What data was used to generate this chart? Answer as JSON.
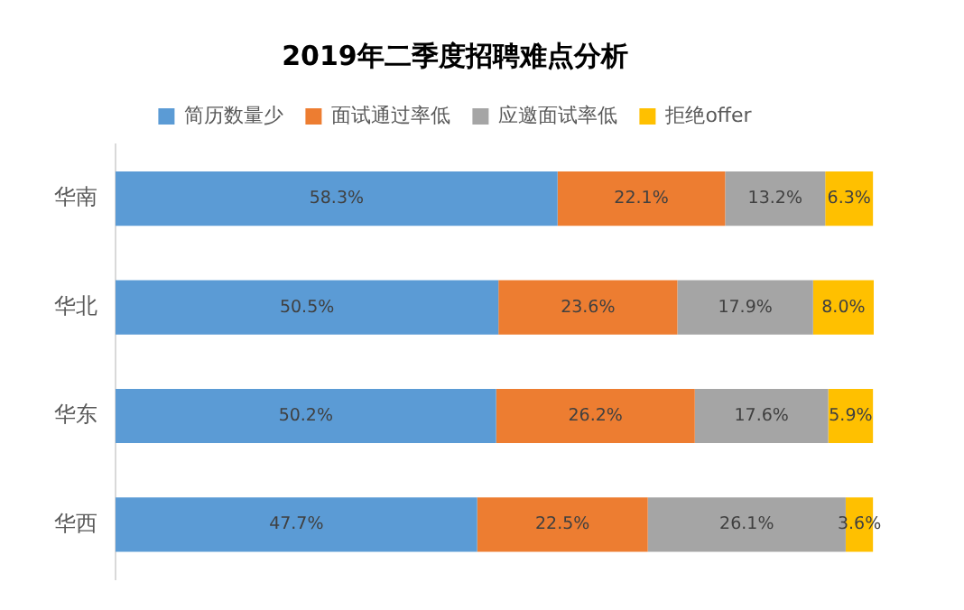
{
  "chart_data": {
    "type": "bar",
    "orientation": "horizontal",
    "stacked": true,
    "title": "2019年二季度招聘难点分析",
    "legend": "top",
    "grid": false,
    "tick_labels": "y",
    "categories": [
      "华南",
      "华北",
      "华东",
      "华西"
    ],
    "series": [
      {
        "name": "简历数量少",
        "color": "#5b9bd5",
        "values": [
          58.3,
          50.5,
          50.2,
          47.7
        ],
        "value_labels": [
          "58.3%",
          "50.5%",
          "50.2%",
          "47.7%"
        ]
      },
      {
        "name": "面试通过率低",
        "color": "#ed7d31",
        "values": [
          22.1,
          23.6,
          26.2,
          22.5
        ],
        "value_labels": [
          "22.1%",
          "23.6%",
          "26.2%",
          "22.5%"
        ]
      },
      {
        "name": "应邀面试率低",
        "color": "#a5a5a5",
        "values": [
          13.2,
          17.9,
          17.6,
          26.1
        ],
        "value_labels": [
          "13.2%",
          "17.9%",
          "17.6%",
          "26.1%"
        ]
      },
      {
        "name": "拒绝offer",
        "color": "#ffc000",
        "values": [
          6.3,
          8.0,
          5.9,
          3.6
        ],
        "value_labels": [
          "6.3%",
          "8.0%",
          "5.9%",
          "3.6%"
        ]
      }
    ]
  }
}
